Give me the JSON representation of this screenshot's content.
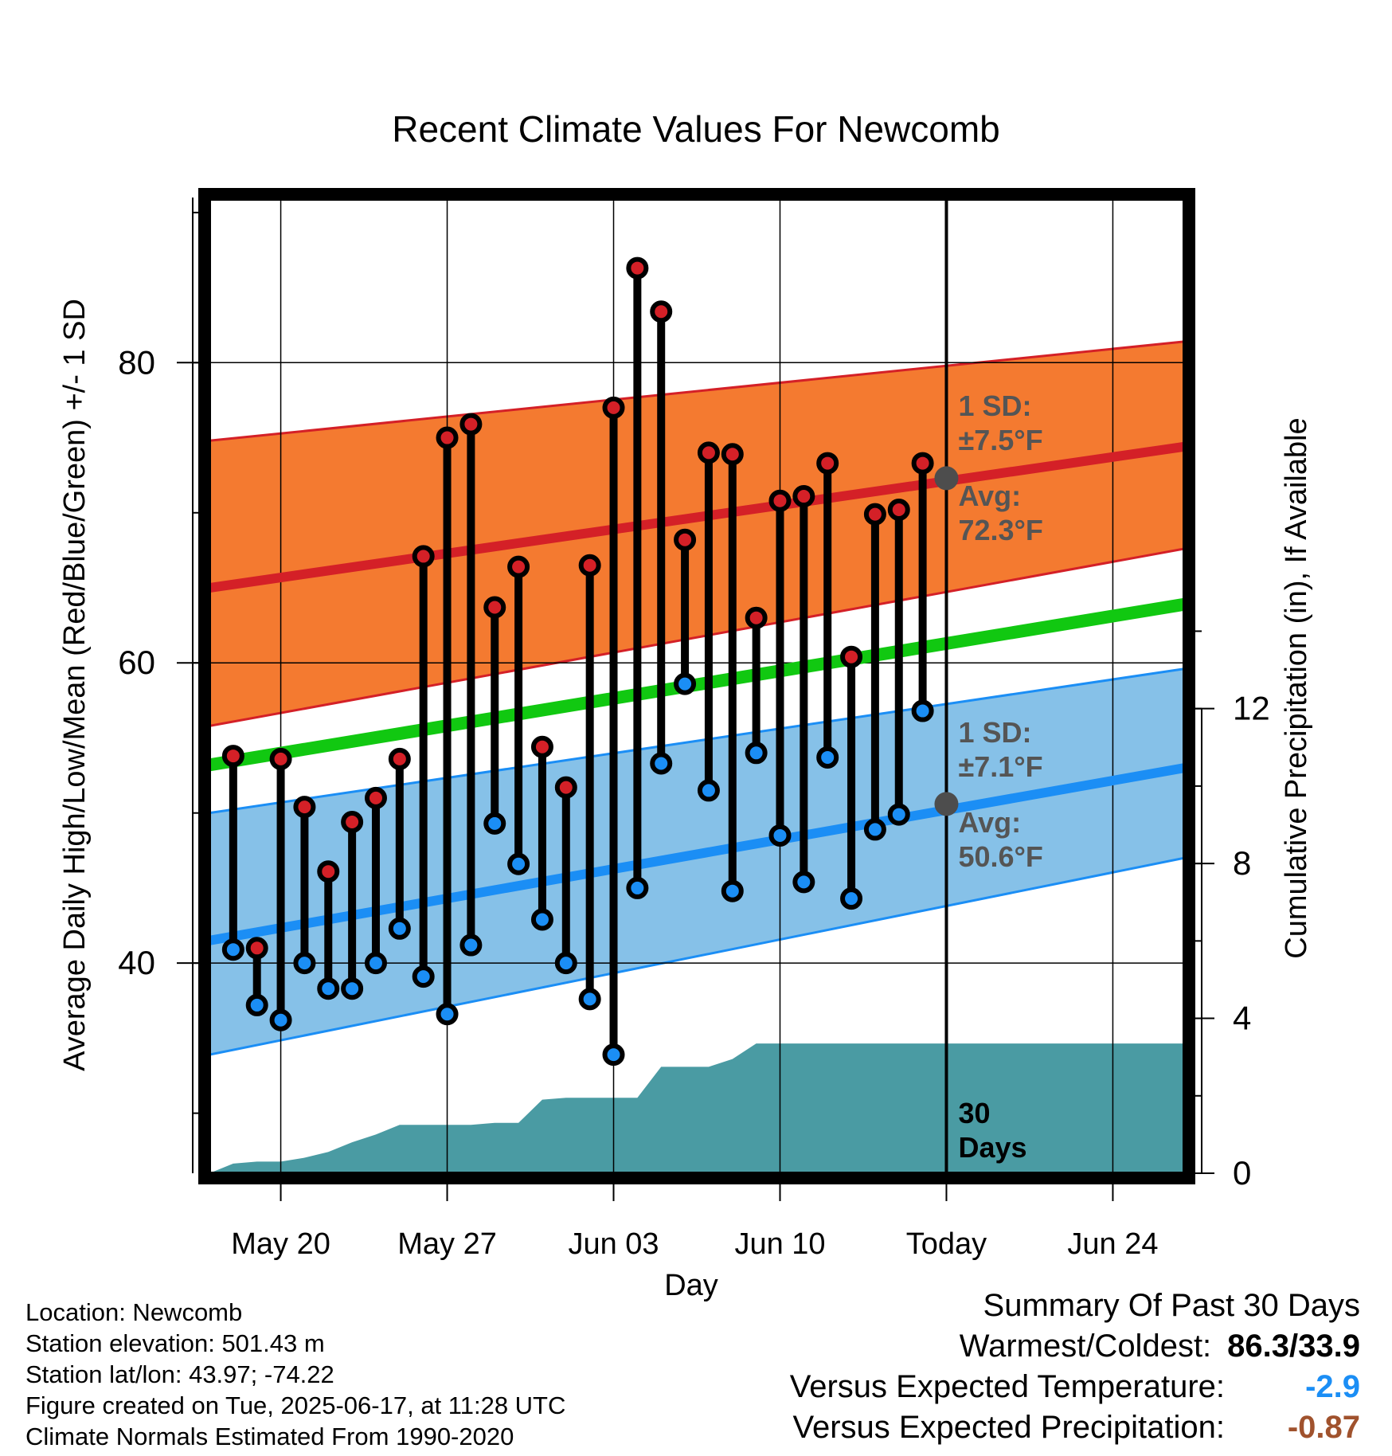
{
  "chart_data": {
    "type": "line",
    "title": "Recent Climate Values For Newcomb",
    "xlabel": "Day",
    "ylabel_left": "Average Daily High/Low/Mean (Red/Blue/Green) +/- 1 SD",
    "ylabel_right": "Cumulative Precipitation (in), If Available",
    "x_tick_labels": [
      "May 20",
      "May 27",
      "Jun 03",
      "Jun 10",
      "Today",
      "Jun 24"
    ],
    "x_range": [
      "2025-05-17",
      "2025-06-27"
    ],
    "today": "2025-06-17",
    "ylim_left": [
      26,
      91
    ],
    "y_ticks_left": [
      40,
      60,
      80
    ],
    "ylim_right": [
      0,
      25.2
    ],
    "y_ticks_right": [
      0,
      4,
      8,
      12
    ],
    "grid": true,
    "daily": {
      "dates": [
        "2025-05-18",
        "2025-05-19",
        "2025-05-20",
        "2025-05-21",
        "2025-05-22",
        "2025-05-23",
        "2025-05-24",
        "2025-05-25",
        "2025-05-26",
        "2025-05-27",
        "2025-05-28",
        "2025-05-29",
        "2025-05-30",
        "2025-05-31",
        "2025-06-01",
        "2025-06-02",
        "2025-06-03",
        "2025-06-04",
        "2025-06-05",
        "2025-06-06",
        "2025-06-07",
        "2025-06-08",
        "2025-06-09",
        "2025-06-10",
        "2025-06-11",
        "2025-06-12",
        "2025-06-13",
        "2025-06-14",
        "2025-06-15",
        "2025-06-16"
      ],
      "high": [
        53.8,
        41.0,
        53.6,
        50.4,
        46.1,
        49.4,
        51.0,
        53.6,
        67.1,
        75.0,
        75.9,
        63.7,
        66.4,
        54.4,
        51.7,
        66.5,
        77.0,
        86.3,
        83.4,
        68.2,
        74.0,
        73.9,
        63.0,
        70.8,
        71.1,
        73.3,
        60.4,
        69.9,
        70.2,
        73.3
      ],
      "low": [
        40.9,
        37.2,
        36.2,
        40.0,
        38.3,
        38.3,
        40.0,
        42.3,
        39.1,
        36.6,
        41.2,
        49.3,
        46.6,
        42.9,
        40.0,
        37.6,
        33.9,
        45.0,
        53.3,
        58.6,
        51.5,
        44.8,
        54.0,
        48.5,
        45.4,
        53.7,
        44.3,
        48.9,
        49.9,
        56.8
      ]
    },
    "normals": {
      "dates": [
        "2025-05-17",
        "2025-06-27"
      ],
      "mean": [
        53.2,
        63.9
      ],
      "avg_high": [
        65.0,
        74.4
      ],
      "avg_high_upper": [
        74.8,
        81.4
      ],
      "avg_high_lower": [
        55.8,
        67.6
      ],
      "avg_low": [
        41.5,
        53.0
      ],
      "avg_low_upper": [
        50.0,
        59.6
      ],
      "avg_low_lower": [
        33.9,
        47.0
      ]
    },
    "precipitation": {
      "dates": [
        "2025-05-17",
        "2025-05-18",
        "2025-05-19",
        "2025-05-20",
        "2025-05-21",
        "2025-05-22",
        "2025-05-23",
        "2025-05-24",
        "2025-05-25",
        "2025-05-26",
        "2025-05-27",
        "2025-05-28",
        "2025-05-29",
        "2025-05-30",
        "2025-05-31",
        "2025-06-01",
        "2025-06-02",
        "2025-06-03",
        "2025-06-04",
        "2025-06-05",
        "2025-06-06",
        "2025-06-07",
        "2025-06-08",
        "2025-06-09",
        "2025-06-10",
        "2025-06-11",
        "2025-06-12",
        "2025-06-13",
        "2025-06-14",
        "2025-06-15",
        "2025-06-16",
        "2025-06-17",
        "2025-06-27"
      ],
      "cumulative": [
        0.0,
        0.25,
        0.3,
        0.3,
        0.4,
        0.55,
        0.8,
        1.0,
        1.25,
        1.25,
        1.25,
        1.25,
        1.3,
        1.3,
        1.9,
        1.95,
        1.95,
        1.95,
        1.95,
        2.75,
        2.75,
        2.75,
        2.95,
        3.35,
        3.35,
        3.35,
        3.35,
        3.35,
        3.35,
        3.35,
        3.35,
        3.35,
        3.35
      ]
    },
    "annotations": {
      "high_sd_label": "1 SD:",
      "high_sd_value": "±7.5°F",
      "high_avg_label": "Avg:",
      "high_avg_value": "72.3°F",
      "high_avg_today": 72.3,
      "low_sd_label": "1 SD:",
      "low_sd_value": "±7.1°F",
      "low_avg_label": "Avg:",
      "low_avg_value": "50.6°F",
      "low_avg_today": 50.6,
      "days_label_1": "30",
      "days_label_2": "Days"
    },
    "colors": {
      "high_band": "#F47A30",
      "high_line": "#D42027",
      "low_band": "#86C1E8",
      "low_line": "#1B8EF5",
      "mean_line": "#11C811",
      "precip": "#4A9BA3",
      "high_dot": "#D42027",
      "low_dot": "#1B8EF5",
      "avg_marker": "#4D4D4D",
      "annotation_text": "#555555"
    }
  },
  "footer": {
    "location": "Location: Newcomb",
    "elevation": "Station elevation: 501.43 m",
    "latlon": "Station lat/lon: 43.97; -74.22",
    "created": "Figure created on Tue, 2025-06-17, at 11:28 UTC",
    "normals": "Climate Normals Estimated From 1990-2020"
  },
  "summary": {
    "title": "Summary Of Past 30 Days",
    "warm_cold_label": "Warmest/Coldest:",
    "warm_cold_value": "86.3/33.9",
    "temp_label": "Versus Expected Temperature:",
    "temp_value": "-2.9",
    "temp_color": "#1B8EF5",
    "precip_label": "Versus Expected Precipitation:",
    "precip_value": "-0.87",
    "precip_color": "#A0522D"
  }
}
